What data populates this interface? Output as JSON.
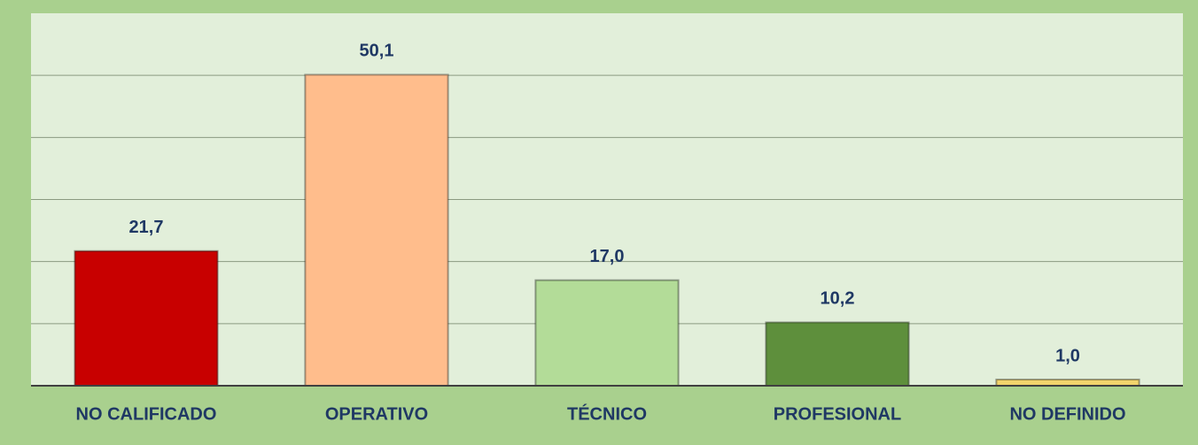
{
  "chart_data": {
    "type": "bar",
    "categories": [
      "NO CALIFICADO",
      "OPERATIVO",
      "TÉCNICO",
      "PROFESIONAL",
      "NO DEFINIDO"
    ],
    "values": [
      21.7,
      50.1,
      17.0,
      10.2,
      1.0
    ],
    "value_labels": [
      "21,7",
      "50,1",
      "17,0",
      "10,2",
      "1,0"
    ],
    "colors": [
      "#c80000",
      "#ffbd8c",
      "#b3dc98",
      "#5e8f3c",
      "#f1d36c"
    ],
    "ylim": [
      0,
      60
    ],
    "yticks": [
      0,
      10,
      20,
      30,
      40,
      50
    ],
    "grid": true
  }
}
